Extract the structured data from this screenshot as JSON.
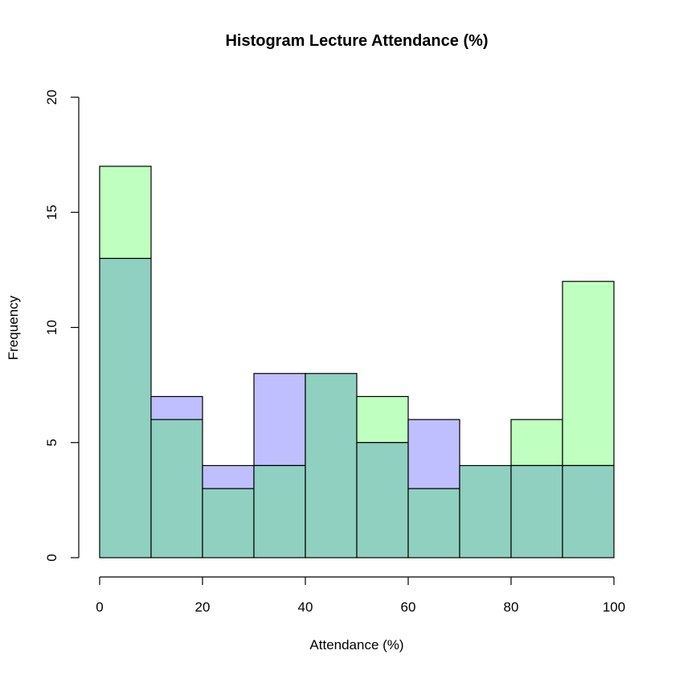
{
  "chart_data": {
    "type": "bar",
    "title": "Histogram Lecture Attendance (%)",
    "xlabel": "Attendance (%)",
    "ylabel": "Frequency",
    "xlim": [
      0,
      100
    ],
    "ylim": [
      0,
      20
    ],
    "bin_edges": [
      0,
      10,
      20,
      30,
      40,
      50,
      60,
      70,
      80,
      90,
      100
    ],
    "x_ticks": [
      "0",
      "20",
      "40",
      "60",
      "80",
      "100"
    ],
    "y_ticks": [
      "0",
      "5",
      "10",
      "15",
      "20"
    ],
    "grid": false,
    "series": [
      {
        "values": [
          13,
          7,
          4,
          8,
          8,
          5,
          6,
          4,
          4,
          4
        ],
        "color": "#bfbfff"
      },
      {
        "values": [
          17,
          6,
          3,
          4,
          8,
          7,
          3,
          4,
          6,
          12
        ],
        "color": "#bfffbf"
      }
    ],
    "overlap_color": "#90d0c0"
  }
}
